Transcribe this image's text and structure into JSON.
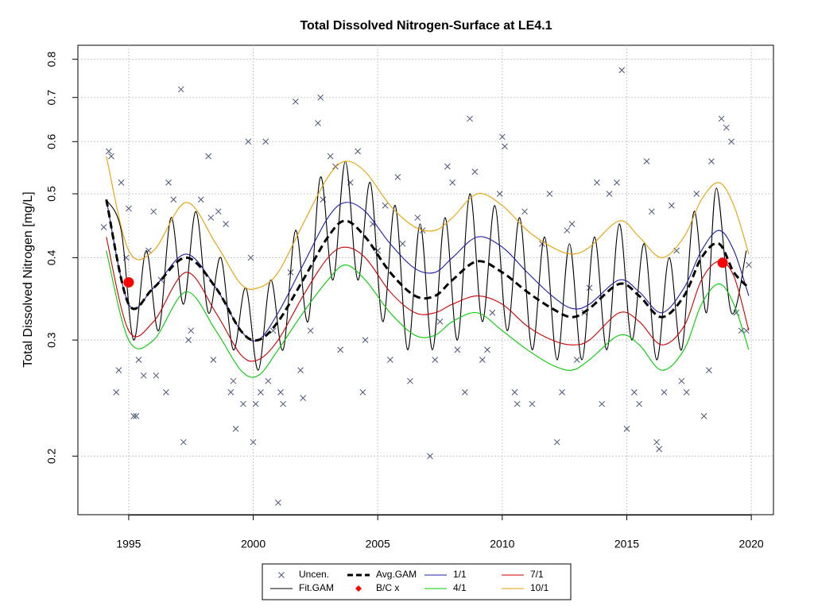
{
  "chart_data": {
    "type": "scatter-line",
    "title": "Total Dissolved Nitrogen-Surface at LE4.1",
    "ylabel": "Total Dissolved Nitrogen [mg/L]",
    "ylog": true,
    "grid": true,
    "legend": "bottom",
    "xlim": [
      1992.96,
      2020.89
    ],
    "xticks": [
      1995,
      2000,
      2005,
      2010,
      2015,
      2020
    ],
    "ylim": [
      0.163,
      0.84
    ],
    "yticks": [
      0.2,
      0.3,
      0.4,
      0.5,
      0.6,
      0.7,
      0.8
    ],
    "series": [
      {
        "name": "Uncen.",
        "color": "#4a5578",
        "style": "points",
        "x": [
          1994.0,
          1994.2,
          1994.3,
          1994.5,
          1994.6,
          1994.7,
          1994.9,
          1995.0,
          1995.2,
          1995.3,
          1995.4,
          1995.6,
          1995.8,
          1996.0,
          1996.1,
          1996.3,
          1996.5,
          1996.6,
          1996.8,
          1997.1,
          1997.2,
          1997.4,
          1997.5,
          1997.9,
          1998.2,
          1998.3,
          1998.4,
          1998.6,
          1998.9,
          1999.1,
          1999.2,
          1999.3,
          1999.6,
          1999.8,
          1999.9,
          2000.0,
          2000.1,
          2000.3,
          2000.5,
          2000.6,
          2000.8,
          2001.0,
          2001.1,
          2001.2,
          2001.5,
          2001.7,
          2001.9,
          2002.0,
          2002.3,
          2002.6,
          2002.7,
          2002.8,
          2003.1,
          2003.3,
          2003.5,
          2003.9,
          2004.2,
          2004.4,
          2004.5,
          2004.8,
          2005.0,
          2005.3,
          2005.5,
          2005.8,
          2006.0,
          2006.3,
          2006.6,
          2006.8,
          2007.1,
          2007.3,
          2007.5,
          2007.8,
          2008.0,
          2008.2,
          2008.5,
          2008.7,
          2008.9,
          2009.2,
          2009.4,
          2009.6,
          2009.9,
          2010.0,
          2010.1,
          2010.5,
          2010.6,
          2010.9,
          2011.2,
          2011.6,
          2011.9,
          2012.2,
          2012.4,
          2012.6,
          2012.8,
          2013.0,
          2013.3,
          2013.5,
          2013.8,
          2014.0,
          2014.3,
          2014.6,
          2014.8,
          2015.0,
          2015.3,
          2015.5,
          2015.8,
          2016.0,
          2016.2,
          2016.3,
          2016.5,
          2016.8,
          2017.0,
          2017.2,
          2017.4,
          2017.8,
          2018.1,
          2018.3,
          2018.4,
          2018.8,
          2019.0,
          2019.2,
          2019.4,
          2019.6,
          2019.8,
          2019.9
        ],
        "values": [
          0.445,
          0.58,
          0.57,
          0.25,
          0.27,
          0.52,
          0.4,
          0.475,
          0.23,
          0.23,
          0.28,
          0.265,
          0.41,
          0.47,
          0.265,
          0.37,
          0.25,
          0.52,
          0.49,
          0.72,
          0.21,
          0.3,
          0.31,
          0.49,
          0.57,
          0.46,
          0.28,
          0.47,
          0.45,
          0.25,
          0.26,
          0.22,
          0.24,
          0.6,
          0.4,
          0.21,
          0.24,
          0.25,
          0.6,
          0.26,
          0.31,
          0.17,
          0.25,
          0.24,
          0.38,
          0.69,
          0.27,
          0.245,
          0.31,
          0.64,
          0.7,
          0.49,
          0.57,
          0.55,
          0.29,
          0.52,
          0.58,
          0.25,
          0.3,
          0.45,
          0.41,
          0.48,
          0.28,
          0.53,
          0.42,
          0.26,
          0.46,
          0.44,
          0.2,
          0.28,
          0.32,
          0.55,
          0.52,
          0.29,
          0.25,
          0.65,
          0.54,
          0.28,
          0.29,
          0.33,
          0.5,
          0.61,
          0.59,
          0.25,
          0.24,
          0.47,
          0.24,
          0.42,
          0.5,
          0.21,
          0.25,
          0.44,
          0.45,
          0.28,
          0.33,
          0.36,
          0.52,
          0.24,
          0.5,
          0.52,
          0.77,
          0.22,
          0.25,
          0.24,
          0.56,
          0.47,
          0.21,
          0.205,
          0.25,
          0.48,
          0.41,
          0.26,
          0.25,
          0.5,
          0.23,
          0.27,
          0.56,
          0.65,
          0.63,
          0.6,
          0.33,
          0.31,
          0.31,
          0.39
        ]
      },
      {
        "name": "Fit.GAM",
        "color": "#000000",
        "style": "line",
        "x": [
          1994.1,
          1994.7,
          1995.2,
          1995.7,
          1996.2,
          1996.7,
          1997.2,
          1997.7,
          1998.2,
          1998.7,
          1999.2,
          1999.7,
          2000.2,
          2000.7,
          2001.2,
          2001.7,
          2002.2,
          2002.7,
          2003.2,
          2003.7,
          2004.2,
          2004.7,
          2005.2,
          2005.7,
          2006.2,
          2006.7,
          2007.2,
          2007.7,
          2008.2,
          2008.7,
          2009.2,
          2009.7,
          2010.2,
          2010.7,
          2011.2,
          2011.7,
          2012.2,
          2012.7,
          2013.2,
          2013.7,
          2014.2,
          2014.7,
          2015.2,
          2015.7,
          2016.2,
          2016.7,
          2017.2,
          2017.7,
          2018.2,
          2018.6,
          2019.2,
          2019.8
        ],
        "values": [
          0.49,
          0.44,
          0.3,
          0.41,
          0.31,
          0.46,
          0.34,
          0.47,
          0.33,
          0.4,
          0.29,
          0.36,
          0.27,
          0.37,
          0.29,
          0.44,
          0.32,
          0.53,
          0.37,
          0.56,
          0.37,
          0.52,
          0.32,
          0.48,
          0.29,
          0.45,
          0.29,
          0.46,
          0.3,
          0.5,
          0.32,
          0.48,
          0.31,
          0.46,
          0.29,
          0.43,
          0.28,
          0.42,
          0.28,
          0.43,
          0.29,
          0.45,
          0.3,
          0.42,
          0.28,
          0.4,
          0.29,
          0.47,
          0.33,
          0.51,
          0.33,
          0.41
        ]
      },
      {
        "name": "Avg.GAM",
        "color": "#000000",
        "style": "dashed",
        "x": [
          1994.1,
          1995.0,
          1996.0,
          1997.3,
          1998.5,
          1999.5,
          2000.2,
          2001.0,
          2002.0,
          2003.0,
          2003.7,
          2004.5,
          2005.5,
          2006.5,
          2007.3,
          2008.0,
          2009.0,
          2010.0,
          2011.0,
          2012.0,
          2012.8,
          2013.5,
          2014.7,
          2015.5,
          2016.4,
          2017.3,
          2018.0,
          2018.7,
          2019.3,
          2019.9
        ],
        "values": [
          0.49,
          0.34,
          0.36,
          0.4,
          0.36,
          0.31,
          0.3,
          0.32,
          0.37,
          0.43,
          0.455,
          0.43,
          0.38,
          0.35,
          0.35,
          0.37,
          0.395,
          0.38,
          0.355,
          0.335,
          0.325,
          0.335,
          0.365,
          0.35,
          0.325,
          0.35,
          0.4,
          0.42,
          0.38,
          0.36
        ]
      },
      {
        "name": "B/C x",
        "color": "#ff0000",
        "style": "dots",
        "x": [
          1995.0,
          2018.85
        ],
        "values": [
          0.367,
          0.393
        ]
      },
      {
        "name": "1/1",
        "color": "#1c1ca8",
        "style": "line",
        "x": [
          1994.1,
          1995.0,
          1996.0,
          1997.3,
          1998.5,
          1999.5,
          2000.2,
          2001.0,
          2002.0,
          2003.0,
          2003.7,
          2004.5,
          2005.5,
          2006.5,
          2007.3,
          2008.0,
          2009.0,
          2010.0,
          2011.0,
          2012.0,
          2012.8,
          2013.5,
          2014.7,
          2015.5,
          2016.4,
          2017.3,
          2018.0,
          2018.7,
          2019.3,
          2019.9
        ],
        "values": [
          0.49,
          0.34,
          0.36,
          0.405,
          0.36,
          0.31,
          0.3,
          0.33,
          0.39,
          0.46,
          0.485,
          0.47,
          0.42,
          0.385,
          0.38,
          0.4,
          0.43,
          0.415,
          0.38,
          0.35,
          0.335,
          0.34,
          0.37,
          0.355,
          0.33,
          0.36,
          0.41,
          0.44,
          0.41,
          0.35
        ]
      },
      {
        "name": "4/1",
        "color": "#00cc00",
        "style": "line",
        "x": [
          1994.1,
          1995.0,
          1996.0,
          1997.3,
          1998.5,
          1999.5,
          2000.2,
          2001.0,
          2002.0,
          2003.0,
          2003.7,
          2004.5,
          2005.5,
          2006.5,
          2007.3,
          2008.0,
          2009.0,
          2010.0,
          2011.0,
          2012.0,
          2012.8,
          2013.5,
          2014.7,
          2015.5,
          2016.4,
          2017.3,
          2018.0,
          2018.7,
          2019.3,
          2019.9
        ],
        "values": [
          0.41,
          0.3,
          0.3,
          0.355,
          0.31,
          0.27,
          0.265,
          0.29,
          0.33,
          0.37,
          0.39,
          0.37,
          0.33,
          0.305,
          0.305,
          0.32,
          0.33,
          0.31,
          0.29,
          0.275,
          0.27,
          0.28,
          0.305,
          0.295,
          0.27,
          0.29,
          0.34,
          0.365,
          0.34,
          0.29
        ]
      },
      {
        "name": "7/1",
        "color": "#cc0000",
        "style": "line",
        "x": [
          1994.1,
          1995.0,
          1996.0,
          1997.3,
          1998.5,
          1999.5,
          2000.2,
          2001.0,
          2002.0,
          2003.0,
          2003.7,
          2004.5,
          2005.5,
          2006.5,
          2007.3,
          2008.0,
          2009.0,
          2010.0,
          2011.0,
          2012.0,
          2012.8,
          2013.5,
          2014.7,
          2015.5,
          2016.4,
          2017.3,
          2018.0,
          2018.7,
          2019.3,
          2019.9
        ],
        "values": [
          0.43,
          0.31,
          0.32,
          0.38,
          0.33,
          0.285,
          0.28,
          0.3,
          0.35,
          0.4,
          0.415,
          0.4,
          0.355,
          0.33,
          0.33,
          0.34,
          0.35,
          0.34,
          0.315,
          0.3,
          0.295,
          0.3,
          0.33,
          0.32,
          0.295,
          0.315,
          0.37,
          0.395,
          0.375,
          0.31
        ]
      },
      {
        "name": "10/1",
        "color": "#e89e00",
        "style": "line",
        "x": [
          1994.1,
          1995.0,
          1996.0,
          1997.3,
          1998.5,
          1999.5,
          2000.2,
          2001.0,
          2002.0,
          2003.0,
          2003.7,
          2004.5,
          2005.5,
          2006.5,
          2007.3,
          2008.0,
          2009.0,
          2010.0,
          2011.0,
          2012.0,
          2012.8,
          2013.5,
          2014.7,
          2015.5,
          2016.4,
          2017.3,
          2018.0,
          2018.7,
          2019.3,
          2019.9
        ],
        "values": [
          0.57,
          0.41,
          0.41,
          0.485,
          0.42,
          0.365,
          0.36,
          0.38,
          0.45,
          0.53,
          0.56,
          0.54,
          0.48,
          0.445,
          0.44,
          0.46,
          0.5,
          0.48,
          0.44,
          0.415,
          0.405,
          0.415,
          0.455,
          0.43,
          0.4,
          0.43,
          0.49,
          0.52,
          0.48,
          0.405
        ]
      }
    ]
  }
}
